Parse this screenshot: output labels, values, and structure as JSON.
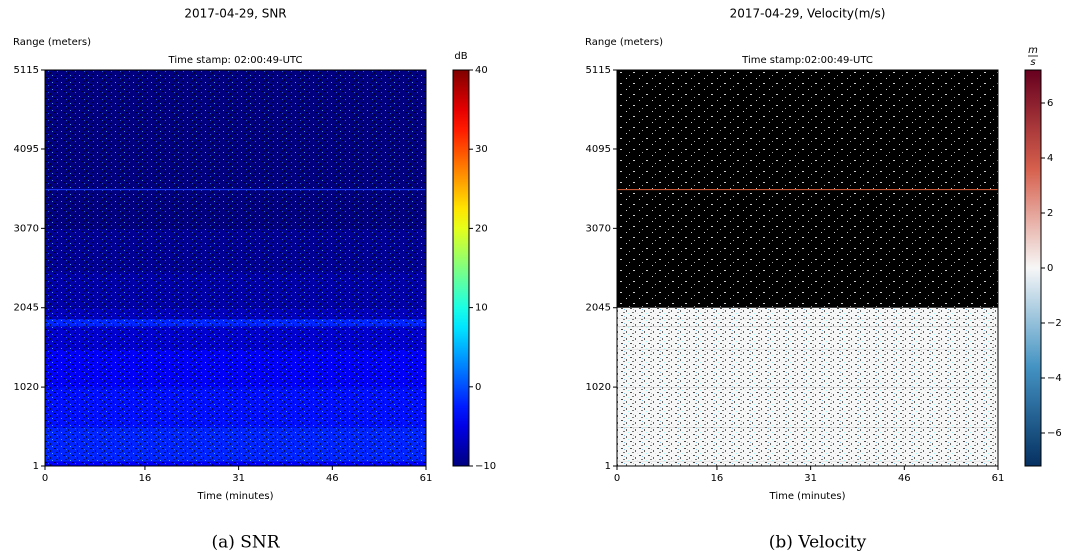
{
  "chart_data": [
    {
      "type": "heatmap",
      "title": "2017-04-29, SNR",
      "subtitle": "Time stamp: 02:00:49-UTC",
      "ylabel": "Range (meters)",
      "xlabel": "Time (minutes)",
      "colorbar_label": "dB",
      "caption": "(a) SNR",
      "xlim": [
        0,
        61
      ],
      "xticks": [
        0,
        16,
        31,
        46,
        61
      ],
      "ylim": [
        1,
        5115
      ],
      "yticks": [
        1,
        1020,
        2045,
        3070,
        4095,
        5115
      ],
      "colormap": "jet",
      "clim": [
        -10,
        40
      ],
      "cticks": [
        {
          "value": -10,
          "label": "−10"
        },
        0,
        10,
        20,
        30,
        40
      ],
      "range_bins": [
        1,
        60,
        500,
        1020,
        1500,
        1800,
        1900,
        2045,
        2500,
        3070,
        5115
      ],
      "values": [
        -4,
        -2,
        -3,
        -4,
        -6,
        -2,
        -7,
        -8,
        -9,
        -10
      ],
      "lines": [
        {
          "y": 3570,
          "color": "#1a3cff"
        }
      ]
    },
    {
      "type": "heatmap",
      "title": "2017-04-29, Velocity(m/s)",
      "subtitle": "Time stamp:02:00:49-UTC",
      "ylabel": "Range (meters)",
      "xlabel": "Time (minutes)",
      "colorbar_label_num": "m",
      "colorbar_label_den": "s",
      "caption": "(b) Velocity",
      "xlim": [
        0,
        61
      ],
      "xticks": [
        0,
        16,
        31,
        46,
        61
      ],
      "ylim": [
        1,
        5115
      ],
      "yticks": [
        1,
        1020,
        2045,
        3070,
        4095,
        5115
      ],
      "colormap": "RdBu_r",
      "clim": [
        -7.2,
        7.2
      ],
      "cticks": [
        {
          "value": -6,
          "label": "−6"
        },
        {
          "value": -4,
          "label": "−4"
        },
        {
          "value": -2,
          "label": "−2"
        },
        0,
        2,
        4,
        6
      ],
      "range_bins": [
        1,
        60,
        500,
        1020,
        1500,
        1800,
        1900,
        2045,
        2500,
        3070,
        5115
      ],
      "values": [
        0,
        0,
        0,
        0,
        0,
        0,
        0,
        null,
        null,
        null
      ],
      "lines": [
        {
          "y": 3570,
          "color": "#e0603a"
        }
      ]
    }
  ]
}
